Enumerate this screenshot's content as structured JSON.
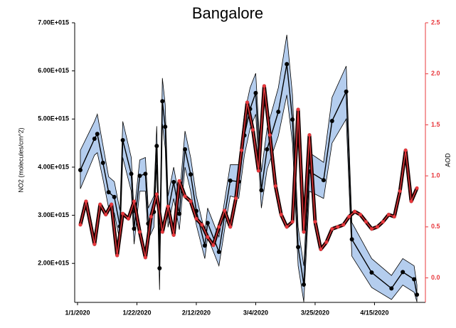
{
  "chart_data": {
    "type": "line",
    "title": "Bangalore",
    "y_label": "NO2 (molecules/cm^2)",
    "y2_label": "AOD",
    "xlim": [
      "2019-12-31",
      "2020-05-03"
    ],
    "xticks": [
      {
        "value": "2020-01-01",
        "label": "1/1/2020"
      },
      {
        "value": "2020-01-22",
        "label": "1/22/2020"
      },
      {
        "value": "2020-02-12",
        "label": "2/12/2020"
      },
      {
        "value": "2020-03-04",
        "label": "3/4/2020"
      },
      {
        "value": "2020-03-25",
        "label": "3/25/2020"
      },
      {
        "value": "2020-04-15",
        "label": "4/15/2020"
      }
    ],
    "ylim": [
      1190000000000000.0,
      7000000000000000.0
    ],
    "yticks": [
      {
        "value": 2000000000000000.0,
        "label": "2.00E+015"
      },
      {
        "value": 3000000000000000.0,
        "label": "3.00E+015"
      },
      {
        "value": 4000000000000000.0,
        "label": "4.00E+015"
      },
      {
        "value": 5000000000000000.0,
        "label": "5.00E+015"
      },
      {
        "value": 6000000000000000.0,
        "label": "6.00E+015"
      },
      {
        "value": 7000000000000000.0,
        "label": "7.00E+015"
      }
    ],
    "y2lim": [
      -0.24,
      2.5
    ],
    "y2ticks": [
      {
        "value": 0,
        "label": "0.0"
      },
      0.5,
      {
        "value": 1,
        "label": "1.0"
      },
      1.5,
      {
        "value": 2,
        "label": "2.0"
      },
      2.5
    ],
    "series": [
      {
        "color": "#000000",
        "band_color": "#b4cdee",
        "axis": "y",
        "x": [
          "2020-01-02",
          "2020-01-07",
          "2020-01-08",
          "2020-01-10",
          "2020-01-12",
          "2020-01-14",
          "2020-01-16",
          "2020-01-17",
          "2020-01-20",
          "2020-01-21",
          "2020-01-23",
          "2020-01-25",
          "2020-01-26",
          "2020-01-28",
          "2020-01-29",
          "2020-01-30",
          "2020-01-31",
          "2020-02-01",
          "2020-02-02",
          "2020-02-04",
          "2020-02-06",
          "2020-02-08",
          "2020-02-10",
          "2020-02-12",
          "2020-02-15",
          "2020-02-16",
          "2020-02-20",
          "2020-02-22",
          "2020-02-24",
          "2020-02-27",
          "2020-02-29",
          "2020-03-02",
          "2020-03-04",
          "2020-03-06",
          "2020-03-08",
          "2020-03-12",
          "2020-03-15",
          "2020-03-17",
          "2020-03-19",
          "2020-03-21",
          "2020-03-23",
          "2020-03-28",
          "2020-03-31",
          "2020-04-05",
          "2020-04-07",
          "2020-04-14",
          "2020-04-21",
          "2020-04-25",
          "2020-04-29",
          "2020-04-30"
        ],
        "values": [
          3940000000000000.0,
          4590000000000000.0,
          4690000000000000.0,
          4090000000000000.0,
          3480000000000000.0,
          3380000000000000.0,
          2770000000000000.0,
          4560000000000000.0,
          3860000000000000.0,
          2720000000000000.0,
          3820000000000000.0,
          3860000000000000.0,
          2830000000000000.0,
          3070000000000000.0,
          4440000000000000.0,
          1900000000000000.0,
          5370000000000000.0,
          4840000000000000.0,
          3070000000000000.0,
          3690000000000000.0,
          3030000000000000.0,
          4370000000000000.0,
          3850000000000000.0,
          3090000000000000.0,
          2370000000000000.0,
          2840000000000000.0,
          2240000000000000.0,
          2990000000000000.0,
          3720000000000000.0,
          3700000000000000.0,
          4660000000000000.0,
          5210000000000000.0,
          5540000000000000.0,
          3520000000000000.0,
          4370000000000000.0,
          5150000000000000.0,
          6140000000000000.0,
          4990000000000000.0,
          2340000000000000.0,
          1560000000000000.0,
          3910000000000000.0,
          3730000000000000.0,
          4960000000000000.0,
          5570000000000000.0,
          2500000000000000.0,
          1810000000000000.0,
          1480000000000000.0,
          1820000000000000.0,
          1670000000000000.0,
          1350000000000000.0
        ],
        "lower": [
          3550000000000000.0,
          4250000000000000.0,
          4300000000000000.0,
          3750000000000000.0,
          3150000000000000.0,
          3050000000000000.0,
          2450000000000000.0,
          4200000000000000.0,
          3500000000000000.0,
          2400000000000000.0,
          3500000000000000.0,
          3500000000000000.0,
          2500000000000000.0,
          2750000000000000.0,
          4050000000000000.0,
          1450000000000000.0,
          4900000000000000.0,
          4400000000000000.0,
          2750000000000000.0,
          3350000000000000.0,
          2700000000000000.0,
          4000000000000000.0,
          3500000000000000.0,
          2800000000000000.0,
          2100000000000000.0,
          2550000000000000.0,
          1950000000000000.0,
          2700000000000000.0,
          3400000000000000.0,
          3350000000000000.0,
          4250000000000000.0,
          4800000000000000.0,
          5100000000000000.0,
          3150000000000000.0,
          3950000000000000.0,
          4650000000000000.0,
          5500000000000000.0,
          4500000000000000.0,
          1950000000000000.0,
          1200000000000000.0,
          3500000000000000.0,
          3350000000000000.0,
          4500000000000000.0,
          5000000000000000.0,
          2150000000000000.0,
          1500000000000000.0,
          1250000000000000.0,
          1550000000000000.0,
          1400000000000000.0,
          1200000000000000.0
        ],
        "upper": [
          4350000000000000.0,
          4950000000000000.0,
          5100000000000000.0,
          4450000000000000.0,
          3800000000000000.0,
          3700000000000000.0,
          3100000000000000.0,
          4950000000000000.0,
          4200000000000000.0,
          3050000000000000.0,
          4150000000000000.0,
          4200000000000000.0,
          3150000000000000.0,
          3400000000000000.0,
          4850000000000000.0,
          2400000000000000.0,
          5850000000000000.0,
          5300000000000000.0,
          3400000000000000.0,
          4000000000000000.0,
          3350000000000000.0,
          4750000000000000.0,
          4200000000000000.0,
          3400000000000000.0,
          2650000000000000.0,
          3150000000000000.0,
          2550000000000000.0,
          3300000000000000.0,
          4050000000000000.0,
          4050000000000000.0,
          5100000000000000.0,
          5650000000000000.0,
          5950000000000000.0,
          3900000000000000.0,
          4800000000000000.0,
          5650000000000000.0,
          6750000000000000.0,
          5500000000000000.0,
          2750000000000000.0,
          1950000000000000.0,
          4300000000000000.0,
          4100000000000000.0,
          5450000000000000.0,
          6100000000000000.0,
          2850000000000000.0,
          2100000000000000.0,
          1750000000000000.0,
          2100000000000000.0,
          1950000000000000.0,
          1550000000000000.0
        ]
      },
      {
        "color": "#e8383d",
        "band_color": "#1a0000",
        "axis": "y2",
        "x": [
          "2020-01-02",
          "2020-01-04",
          "2020-01-07",
          "2020-01-09",
          "2020-01-11",
          "2020-01-13",
          "2020-01-15",
          "2020-01-17",
          "2020-01-19",
          "2020-01-21",
          "2020-01-23",
          "2020-01-25",
          "2020-01-27",
          "2020-01-29",
          "2020-01-31",
          "2020-02-02",
          "2020-02-04",
          "2020-02-06",
          "2020-02-08",
          "2020-02-10",
          "2020-02-12",
          "2020-02-14",
          "2020-02-16",
          "2020-02-18",
          "2020-02-20",
          "2020-02-22",
          "2020-02-24",
          "2020-02-26",
          "2020-02-28",
          "2020-03-01",
          "2020-03-03",
          "2020-03-05",
          "2020-03-07",
          "2020-03-09",
          "2020-03-11",
          "2020-03-13",
          "2020-03-15",
          "2020-03-17",
          "2020-03-19",
          "2020-03-21",
          "2020-03-23",
          "2020-03-25",
          "2020-03-27",
          "2020-03-29",
          "2020-03-31",
          "2020-04-02",
          "2020-04-04",
          "2020-04-06",
          "2020-04-08",
          "2020-04-10",
          "2020-04-12",
          "2020-04-14",
          "2020-04-16",
          "2020-04-18",
          "2020-04-20",
          "2020-04-22",
          "2020-04-24",
          "2020-04-26",
          "2020-04-28",
          "2020-04-30"
        ],
        "values": [
          0.52,
          0.75,
          0.33,
          0.72,
          0.62,
          0.72,
          0.22,
          0.63,
          0.58,
          0.75,
          0.45,
          0.2,
          0.6,
          0.82,
          0.45,
          0.7,
          0.42,
          0.95,
          0.8,
          0.75,
          0.58,
          0.52,
          0.4,
          0.32,
          0.5,
          0.66,
          0.5,
          0.78,
          1.25,
          1.72,
          1.45,
          1.05,
          1.88,
          1.4,
          0.9,
          0.62,
          0.5,
          0.55,
          1.65,
          0.45,
          1.4,
          0.55,
          0.28,
          0.35,
          0.48,
          0.5,
          0.52,
          0.6,
          0.65,
          0.62,
          0.55,
          0.48,
          0.5,
          0.55,
          0.62,
          0.6,
          0.85,
          1.25,
          0.75,
          0.88
        ]
      }
    ]
  }
}
